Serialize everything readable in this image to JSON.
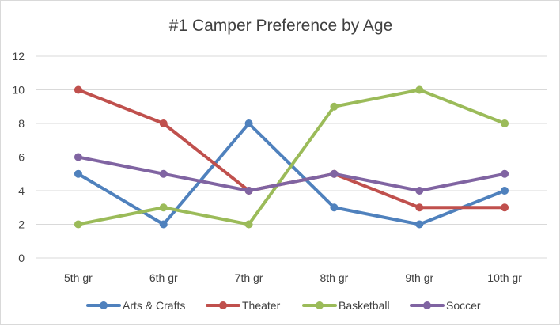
{
  "chart_data": {
    "type": "line",
    "title": "#1 Camper Preference by Age",
    "xlabel": "",
    "ylabel": "",
    "categories": [
      "5th gr",
      "6th gr",
      "7th gr",
      "8th gr",
      "9th gr",
      "10th gr"
    ],
    "ylim": [
      0,
      12
    ],
    "yticks": [
      0,
      2,
      4,
      6,
      8,
      10,
      12
    ],
    "grid": true,
    "legend": "bottom",
    "series": [
      {
        "name": "Arts & Crafts",
        "color": "#4f81bd",
        "values": [
          5,
          2,
          8,
          3,
          2,
          4
        ]
      },
      {
        "name": "Theater",
        "color": "#c0504d",
        "values": [
          10,
          8,
          4,
          5,
          3,
          3
        ]
      },
      {
        "name": "Basketball",
        "color": "#9bbb59",
        "values": [
          2,
          3,
          2,
          9,
          10,
          8
        ]
      },
      {
        "name": "Soccer",
        "color": "#8064a2",
        "values": [
          6,
          5,
          4,
          5,
          4,
          5
        ]
      }
    ]
  }
}
